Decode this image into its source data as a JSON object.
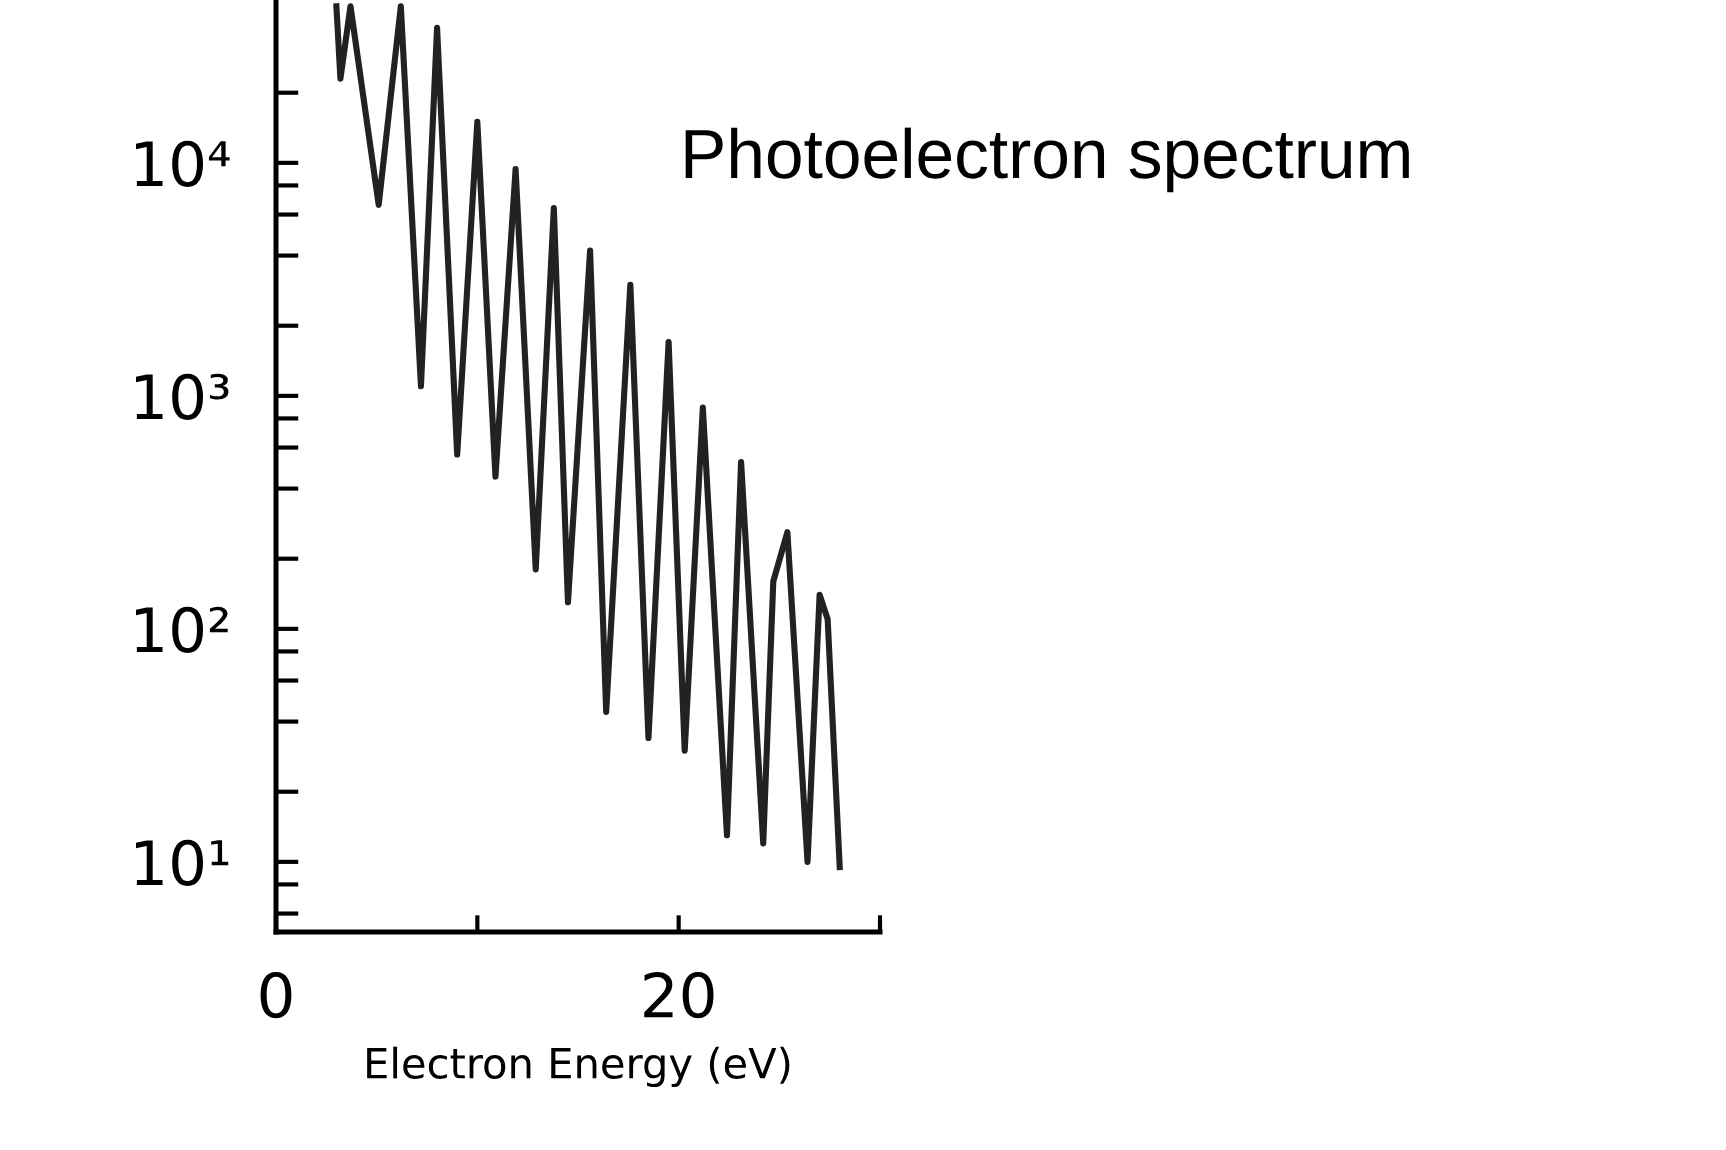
{
  "chart_data": {
    "type": "line",
    "title": "Photoelectron spectrum",
    "xlabel": "Electron Energy (eV)",
    "log": "y",
    "grid": false,
    "legend": false,
    "marker": "none",
    "line_style": "solid",
    "x": [
      3.0,
      3.2,
      3.7,
      5.1,
      6.2,
      7.2,
      8.0,
      9.0,
      10.0,
      10.9,
      11.9,
      12.9,
      13.8,
      14.5,
      15.6,
      16.4,
      17.6,
      18.5,
      19.5,
      20.3,
      21.2,
      22.4,
      23.1,
      24.2,
      24.7,
      25.4,
      26.4,
      27.0,
      27.4,
      28.0
    ],
    "series": [
      {
        "color": "#222222",
        "values": [
          47000,
          23000,
          47000,
          6600,
          47000,
          1100,
          38000,
          560,
          15000,
          450,
          9400,
          180,
          6400,
          130,
          4200,
          44,
          3000,
          34,
          1700,
          30,
          890,
          13,
          520,
          12,
          160,
          260,
          10,
          140,
          110,
          9.5
        ]
      }
    ],
    "xlim": [
      0,
      30
    ],
    "xticks": [
      0,
      {
        "value": 10,
        "label": null
      },
      20,
      {
        "value": 30,
        "label": null
      }
    ],
    "ylim": [
      5,
      50000
    ],
    "yticks": [
      {
        "value": 6,
        "label": null
      },
      {
        "value": 8,
        "label": null
      },
      {
        "value": 10,
        "label": "10¹"
      },
      {
        "value": 20,
        "label": null
      },
      {
        "value": 40,
        "label": null
      },
      {
        "value": 60,
        "label": null
      },
      {
        "value": 80,
        "label": null
      },
      {
        "value": 100,
        "label": "10²"
      },
      {
        "value": 200,
        "label": null
      },
      {
        "value": 400,
        "label": null
      },
      {
        "value": 600,
        "label": null
      },
      {
        "value": 800,
        "label": null
      },
      {
        "value": 1000,
        "label": "10³"
      },
      {
        "value": 2000,
        "label": null
      },
      {
        "value": 4000,
        "label": null
      },
      {
        "value": 6000,
        "label": null
      },
      {
        "value": 8000,
        "label": null
      },
      {
        "value": 10000,
        "label": "10⁴"
      },
      {
        "value": 20000,
        "label": null
      }
    ]
  }
}
